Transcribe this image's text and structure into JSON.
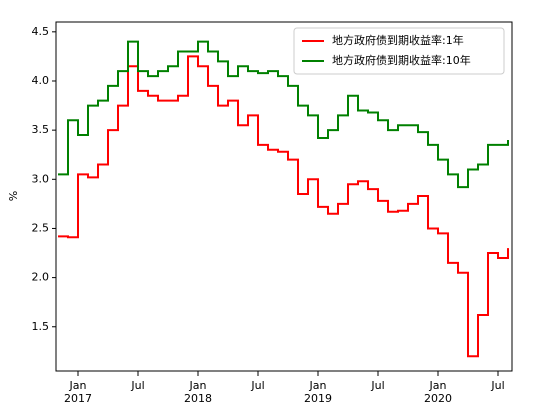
{
  "chart_data": {
    "type": "line",
    "ylabel": "%",
    "x": [
      "2016-11",
      "2016-12",
      "2017-01",
      "2017-02",
      "2017-03",
      "2017-04",
      "2017-05",
      "2017-06",
      "2017-07",
      "2017-08",
      "2017-09",
      "2017-10",
      "2017-11",
      "2017-12",
      "2018-01",
      "2018-02",
      "2018-03",
      "2018-04",
      "2018-05",
      "2018-06",
      "2018-07",
      "2018-08",
      "2018-09",
      "2018-10",
      "2018-11",
      "2018-12",
      "2019-01",
      "2019-02",
      "2019-03",
      "2019-04",
      "2019-05",
      "2019-06",
      "2019-07",
      "2019-08",
      "2019-09",
      "2019-10",
      "2019-11",
      "2019-12",
      "2020-01",
      "2020-02",
      "2020-03",
      "2020-04",
      "2020-05",
      "2020-06",
      "2020-07",
      "2020-08"
    ],
    "series": [
      {
        "name": "地方政府债到期收益率:1年",
        "color": "#ff0000",
        "values": [
          2.42,
          2.41,
          3.05,
          3.02,
          3.15,
          3.5,
          3.75,
          4.15,
          3.9,
          3.85,
          3.8,
          3.8,
          3.85,
          4.25,
          4.15,
          3.95,
          3.75,
          3.8,
          3.55,
          3.65,
          3.35,
          3.3,
          3.28,
          3.2,
          2.85,
          3.0,
          2.72,
          2.65,
          2.75,
          2.95,
          2.98,
          2.9,
          2.78,
          2.67,
          2.68,
          2.75,
          2.83,
          2.5,
          2.45,
          2.15,
          2.05,
          1.2,
          1.62,
          2.25,
          2.2,
          2.3
        ]
      },
      {
        "name": "地方政府债到期收益率:10年",
        "color": "#008000",
        "values": [
          3.05,
          3.6,
          3.45,
          3.75,
          3.8,
          3.95,
          4.1,
          4.4,
          4.1,
          4.05,
          4.1,
          4.15,
          4.3,
          4.3,
          4.4,
          4.3,
          4.2,
          4.05,
          4.15,
          4.1,
          4.08,
          4.1,
          4.05,
          3.95,
          3.75,
          3.65,
          3.42,
          3.5,
          3.65,
          3.85,
          3.7,
          3.68,
          3.6,
          3.5,
          3.55,
          3.55,
          3.48,
          3.35,
          3.2,
          3.05,
          2.92,
          3.1,
          3.15,
          3.35,
          3.35,
          3.4
        ]
      }
    ],
    "xlim": [
      "2016-11",
      "2020-08"
    ],
    "xticks": [
      {
        "value": "2017-01",
        "label": "Jan\n2017"
      },
      {
        "value": "2017-07",
        "label": "Jul"
      },
      {
        "value": "2018-01",
        "label": "Jan\n2018"
      },
      {
        "value": "2018-07",
        "label": "Jul"
      },
      {
        "value": "2019-01",
        "label": "Jan\n2019"
      },
      {
        "value": "2019-07",
        "label": "Jul"
      },
      {
        "value": "2020-01",
        "label": "Jan\n2020"
      },
      {
        "value": "2020-07",
        "label": "Jul"
      }
    ],
    "ylim": [
      1.05,
      4.6
    ],
    "yticks": [
      1.5,
      {
        "value": 2,
        "label": "2.0"
      },
      2.5,
      {
        "value": 3,
        "label": "3.0"
      },
      3.5,
      {
        "value": 4,
        "label": "4.0"
      },
      4.5
    ],
    "legend": "upper right"
  }
}
